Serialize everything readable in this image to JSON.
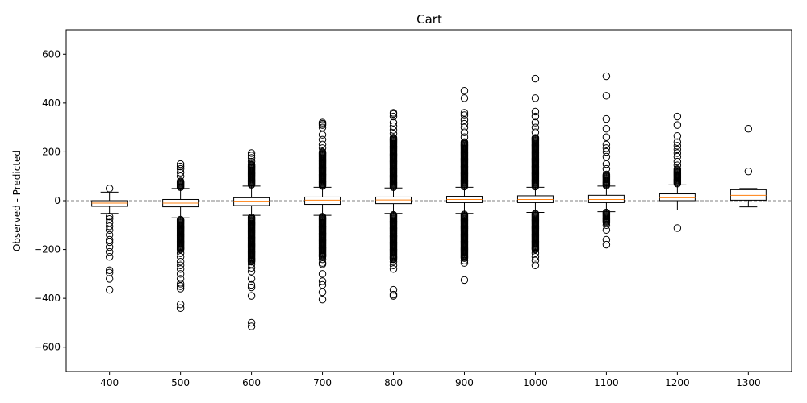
{
  "chart_data": {
    "type": "boxplot",
    "title": "Cart",
    "xlabel": "",
    "ylabel": "Observed - Predicted",
    "ylim": [
      -700,
      700
    ],
    "yticks": [
      -600,
      -400,
      -200,
      0,
      200,
      400,
      600
    ],
    "categories": [
      "400",
      "500",
      "600",
      "700",
      "800",
      "900",
      "1000",
      "1100",
      "1200",
      "1300"
    ],
    "reference_line": {
      "y": 0,
      "style": "dashed",
      "color": "#808080"
    },
    "colors": {
      "box": "#000000",
      "median": "#ff7f0e",
      "outlier": "#000000"
    },
    "boxes": [
      {
        "category": "400",
        "q1": -23,
        "median": -10,
        "q3": 0,
        "whisker_low": -52,
        "whisker_high": 35,
        "outliers": [
          50,
          -65,
          -75,
          -90,
          -105,
          -120,
          -140,
          -160,
          -170,
          -190,
          -210,
          -230,
          -285,
          -295,
          -320,
          -365
        ]
      },
      {
        "category": "500",
        "q1": -25,
        "median": -10,
        "q3": 5,
        "whisker_low": -70,
        "whisker_high": 50,
        "outlier_bands": [
          [
            55,
            80
          ],
          [
            -75,
            -200
          ]
        ],
        "outliers": [
          100,
          115,
          130,
          140,
          150,
          -215,
          -230,
          -250,
          -265,
          -280,
          -300,
          -320,
          -340,
          -350,
          -360,
          -425,
          -440
        ]
      },
      {
        "category": "600",
        "q1": -20,
        "median": -2,
        "q3": 12,
        "whisker_low": -60,
        "whisker_high": 60,
        "outlier_bands": [
          [
            65,
            150
          ],
          [
            -65,
            -250
          ]
        ],
        "outliers": [
          160,
          175,
          185,
          195,
          -260,
          -275,
          -290,
          -320,
          -345,
          -355,
          -390,
          -500,
          -515
        ]
      },
      {
        "category": "700",
        "q1": -15,
        "median": 2,
        "q3": 15,
        "whisker_low": -60,
        "whisker_high": 55,
        "outlier_bands": [
          [
            60,
            200
          ],
          [
            -65,
            -230
          ]
        ],
        "outliers": [
          215,
          230,
          250,
          270,
          300,
          310,
          315,
          320,
          -240,
          -255,
          -260,
          -300,
          -330,
          -345,
          -375,
          -405
        ]
      },
      {
        "category": "800",
        "q1": -12,
        "median": 3,
        "q3": 15,
        "whisker_low": -52,
        "whisker_high": 52,
        "outlier_bands": [
          [
            55,
            260
          ],
          [
            -55,
            -240
          ]
        ],
        "outliers": [
          275,
          290,
          305,
          320,
          345,
          355,
          360,
          -250,
          -265,
          -280,
          -365,
          -385,
          -390
        ]
      },
      {
        "category": "900",
        "q1": -8,
        "median": 5,
        "q3": 18,
        "whisker_low": -52,
        "whisker_high": 55,
        "outlier_bands": [
          [
            58,
            240
          ],
          [
            -55,
            -235
          ]
        ],
        "outliers": [
          260,
          280,
          300,
          315,
          330,
          350,
          360,
          420,
          450,
          -245,
          -255,
          -325
        ]
      },
      {
        "category": "1000",
        "q1": -8,
        "median": 5,
        "q3": 20,
        "whisker_low": -48,
        "whisker_high": 55,
        "outlier_bands": [
          [
            58,
            260
          ],
          [
            -52,
            -200
          ]
        ],
        "outliers": [
          280,
          300,
          320,
          345,
          365,
          420,
          500,
          -215,
          -230,
          -245,
          -265
        ]
      },
      {
        "category": "1100",
        "q1": -8,
        "median": 5,
        "q3": 22,
        "whisker_low": -45,
        "whisker_high": 60,
        "outlier_bands": [
          [
            62,
            110
          ],
          [
            -48,
            -90
          ]
        ],
        "outliers": [
          130,
          150,
          180,
          200,
          215,
          230,
          260,
          295,
          335,
          430,
          510,
          -100,
          -120,
          -160,
          -180
        ]
      },
      {
        "category": "1200",
        "q1": 0,
        "median": 12,
        "q3": 28,
        "whisker_low": -38,
        "whisker_high": 65,
        "outlier_bands": [
          [
            70,
            130
          ]
        ],
        "outliers": [
          145,
          160,
          180,
          195,
          210,
          225,
          240,
          265,
          310,
          345,
          -112
        ]
      },
      {
        "category": "1300",
        "q1": 2,
        "median": 22,
        "q3": 45,
        "whisker_low": -25,
        "whisker_high": 50,
        "outliers": [
          120,
          295
        ]
      }
    ]
  }
}
